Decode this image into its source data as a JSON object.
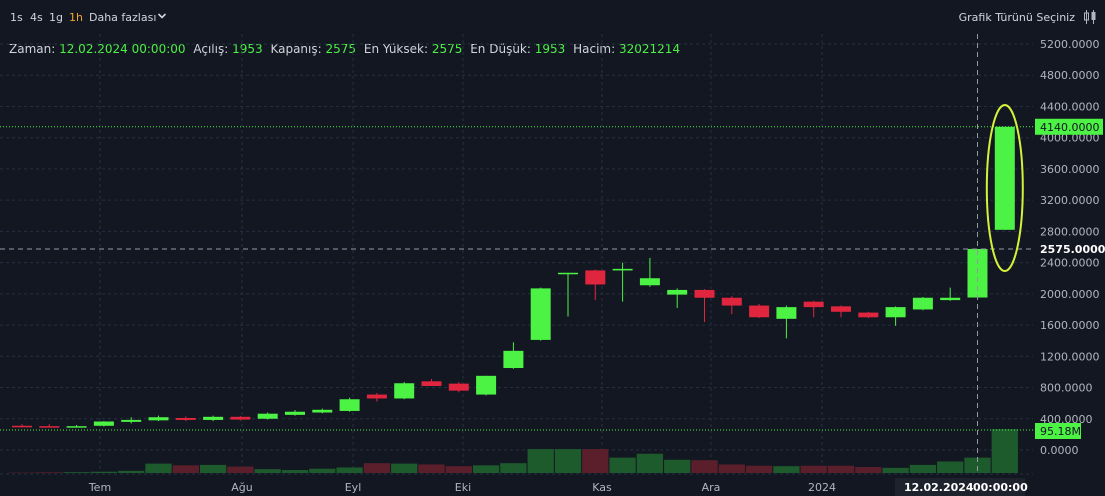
{
  "toolbar": {
    "timeframes": [
      "1s",
      "4s",
      "1g",
      "1h"
    ],
    "active_timeframe": "1h",
    "more_label": "Daha fazlası",
    "chart_type_label": "Grafik Türünü Seçiniz"
  },
  "ohlc_header": {
    "time_label": "Zaman:",
    "time_value": "12.02.2024 00:00:00",
    "open_label": "Açılış:",
    "open_value": "1953",
    "close_label": "Kapanış:",
    "close_value": "2575",
    "high_label": "En Yüksek:",
    "high_value": "2575",
    "low_label": "En Düşük:",
    "low_value": "1953",
    "volume_label": "Hacim:",
    "volume_value": "32021214"
  },
  "colors": {
    "background": "#131722",
    "up": "#4cf244",
    "down": "#e0263e",
    "volume_up": "#1d5a2c",
    "volume_down": "#5b1f2c",
    "highlight_ellipse": "#d6f238"
  },
  "chart_data": {
    "type": "candlestick",
    "x_ticks": [
      "Tem",
      "Ağu",
      "Eyl",
      "Eki",
      "Kas",
      "Ara",
      "2024"
    ],
    "y_ticks": [
      "5200.0000",
      "4800.0000",
      "4400.0000",
      "4000.0000",
      "3600.0000",
      "3200.0000",
      "2800.0000",
      "2400.0000",
      "2000.0000",
      "1600.0000",
      "1200.0000",
      "800.0000",
      "400.0000",
      "0.0000"
    ],
    "ylim": [
      0,
      5300
    ],
    "grid": true,
    "price_labels": {
      "last_price": "4140.0000",
      "crosshair_price": "2575.0000",
      "volume_last": "95.18M"
    },
    "crosshair": {
      "time": "12.02.2024",
      "clock": "00:00:00",
      "price": 2575
    },
    "annotation": "ellipse highlighting last candle",
    "candles": [
      {
        "o": 310,
        "h": 330,
        "l": 290,
        "c": 300
      },
      {
        "o": 305,
        "h": 330,
        "l": 290,
        "c": 295
      },
      {
        "o": 300,
        "h": 320,
        "l": 290,
        "c": 305
      },
      {
        "o": 310,
        "h": 370,
        "l": 300,
        "c": 365
      },
      {
        "o": 360,
        "h": 420,
        "l": 340,
        "c": 385
      },
      {
        "o": 380,
        "h": 440,
        "l": 370,
        "c": 420
      },
      {
        "o": 410,
        "h": 430,
        "l": 370,
        "c": 385
      },
      {
        "o": 385,
        "h": 440,
        "l": 370,
        "c": 425
      },
      {
        "o": 425,
        "h": 435,
        "l": 380,
        "c": 390
      },
      {
        "o": 400,
        "h": 480,
        "l": 390,
        "c": 465
      },
      {
        "o": 450,
        "h": 510,
        "l": 440,
        "c": 490
      },
      {
        "o": 480,
        "h": 530,
        "l": 470,
        "c": 515
      },
      {
        "o": 500,
        "h": 670,
        "l": 490,
        "c": 650
      },
      {
        "o": 710,
        "h": 730,
        "l": 620,
        "c": 660
      },
      {
        "o": 660,
        "h": 870,
        "l": 650,
        "c": 855
      },
      {
        "o": 880,
        "h": 910,
        "l": 820,
        "c": 820
      },
      {
        "o": 850,
        "h": 870,
        "l": 740,
        "c": 760
      },
      {
        "o": 710,
        "h": 950,
        "l": 700,
        "c": 950
      },
      {
        "o": 1050,
        "h": 1380,
        "l": 1040,
        "c": 1270
      },
      {
        "o": 1410,
        "h": 2080,
        "l": 1400,
        "c": 2070
      },
      {
        "o": 2270,
        "h": 2270,
        "l": 1710,
        "c": 2270
      },
      {
        "o": 2300,
        "h": 2310,
        "l": 1920,
        "c": 2120
      },
      {
        "o": 2300,
        "h": 2400,
        "l": 1900,
        "c": 2320
      },
      {
        "o": 2110,
        "h": 2460,
        "l": 2090,
        "c": 2200
      },
      {
        "o": 1990,
        "h": 2070,
        "l": 1820,
        "c": 2050
      },
      {
        "o": 2050,
        "h": 2060,
        "l": 1640,
        "c": 1950
      },
      {
        "o": 1950,
        "h": 1970,
        "l": 1740,
        "c": 1850
      },
      {
        "o": 1850,
        "h": 1870,
        "l": 1690,
        "c": 1700
      },
      {
        "o": 1680,
        "h": 1850,
        "l": 1430,
        "c": 1830
      },
      {
        "o": 1900,
        "h": 1910,
        "l": 1700,
        "c": 1830
      },
      {
        "o": 1840,
        "h": 1850,
        "l": 1700,
        "c": 1770
      },
      {
        "o": 1760,
        "h": 1770,
        "l": 1690,
        "c": 1700
      },
      {
        "o": 1700,
        "h": 1840,
        "l": 1590,
        "c": 1830
      },
      {
        "o": 1800,
        "h": 1960,
        "l": 1790,
        "c": 1950
      },
      {
        "o": 1920,
        "h": 2080,
        "l": 1910,
        "c": 1950
      },
      {
        "o": 1953,
        "h": 2575,
        "l": 1953,
        "c": 2575
      },
      {
        "o": 2820,
        "h": 4140,
        "l": 2820,
        "c": 4140
      }
    ],
    "volume_scale_max": 95.18,
    "volumes": [
      0.5,
      0.8,
      1.0,
      1.5,
      2.5,
      11.0,
      9.0,
      9.5,
      7.5,
      4.5,
      3.5,
      5.0,
      6.5,
      11.5,
      11.0,
      10.0,
      8.0,
      9.0,
      11.5,
      28.0,
      28.0,
      28.0,
      18.0,
      22.5,
      15.5,
      15.0,
      10.0,
      8.5,
      8.0,
      8.5,
      8.5,
      7.0,
      6.0,
      9.5,
      13.5,
      18.0,
      51.5
    ]
  }
}
